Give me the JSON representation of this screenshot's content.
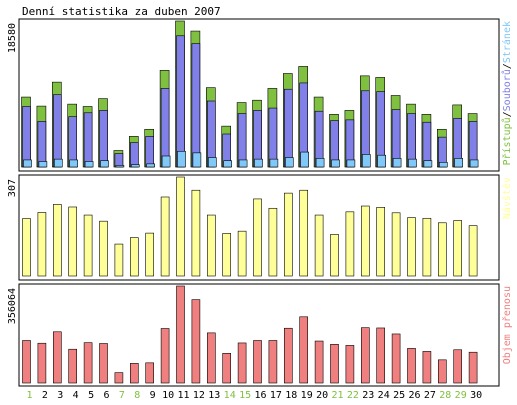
{
  "title": "Denní statistika za duben 2007",
  "colors": {
    "background": "#ffffff",
    "border": "#000000",
    "access": "#80c040",
    "file": "#8080e8",
    "page": "#80c8f8",
    "visits": "#ffff99",
    "traffic": "#f08080",
    "weekend_label": "#80c040",
    "weekday_label": "#000000"
  },
  "chart_data": [
    {
      "type": "bar",
      "panel": "hits",
      "ymax_label": "18580",
      "ylim": [
        0,
        18580
      ],
      "legend": [
        {
          "name": "Přístupů",
          "color": "#80c040"
        },
        {
          "name": "Souborů",
          "color": "#8080e8"
        },
        {
          "name": "Stránek",
          "color": "#80c8f8"
        }
      ],
      "categories": [
        "1",
        "2",
        "3",
        "4",
        "5",
        "6",
        "7",
        "8",
        "9",
        "10",
        "11",
        "12",
        "13",
        "14",
        "15",
        "16",
        "17",
        "18",
        "19",
        "20",
        "21",
        "22",
        "23",
        "24",
        "25",
        "26",
        "27",
        "28",
        "29",
        "30"
      ],
      "weekend": [
        1,
        7,
        8,
        14,
        15,
        21,
        22,
        28,
        29
      ],
      "series": [
        {
          "name": "Přístupů",
          "values": [
            8900,
            7750,
            10800,
            8000,
            7700,
            8700,
            2100,
            3900,
            4800,
            12300,
            18580,
            17300,
            10100,
            5200,
            8200,
            8500,
            10000,
            11900,
            12800,
            8900,
            6700,
            7200,
            11600,
            11400,
            9100,
            8000,
            6700,
            4800,
            7900,
            6800
          ]
        },
        {
          "name": "Souborů",
          "values": [
            7700,
            5800,
            9200,
            6400,
            6900,
            7200,
            1700,
            3100,
            3900,
            10000,
            16700,
            15700,
            8400,
            4200,
            6800,
            7200,
            7500,
            9900,
            10700,
            7100,
            5900,
            6000,
            9700,
            9600,
            7300,
            6800,
            5700,
            3800,
            6200,
            5800
          ]
        },
        {
          "name": "Stránek",
          "values": [
            900,
            700,
            1000,
            900,
            700,
            800,
            200,
            300,
            400,
            1400,
            2000,
            1800,
            1200,
            800,
            900,
            1000,
            1000,
            1200,
            1900,
            1100,
            900,
            900,
            1600,
            1500,
            1100,
            1000,
            800,
            600,
            1100,
            900
          ]
        }
      ]
    },
    {
      "type": "bar",
      "panel": "visits",
      "ymax_label": "307",
      "ylim": [
        0,
        307
      ],
      "legend": [
        {
          "name": "Návštěv",
          "color": "#ffff99"
        }
      ],
      "categories": [
        "1",
        "2",
        "3",
        "4",
        "5",
        "6",
        "7",
        "8",
        "9",
        "10",
        "11",
        "12",
        "13",
        "14",
        "15",
        "16",
        "17",
        "18",
        "19",
        "20",
        "21",
        "22",
        "23",
        "24",
        "25",
        "26",
        "27",
        "28",
        "29",
        "30"
      ],
      "series": [
        {
          "name": "Návštěv",
          "values": [
            178,
            197,
            222,
            214,
            189,
            170,
            99,
            119,
            133,
            245,
            307,
            266,
            189,
            132,
            139,
            239,
            210,
            257,
            266,
            189,
            129,
            199,
            217,
            213,
            196,
            181,
            179,
            165,
            172,
            156
          ]
        }
      ]
    },
    {
      "type": "bar",
      "panel": "traffic",
      "ymax_label": "356064",
      "ylim": [
        0,
        356064
      ],
      "legend": [
        {
          "name": "Objem přenosu",
          "color": "#f08080"
        }
      ],
      "categories": [
        "1",
        "2",
        "3",
        "4",
        "5",
        "6",
        "7",
        "8",
        "9",
        "10",
        "11",
        "12",
        "13",
        "14",
        "15",
        "16",
        "17",
        "18",
        "19",
        "20",
        "21",
        "22",
        "23",
        "24",
        "25",
        "26",
        "27",
        "28",
        "29",
        "30"
      ],
      "series": [
        {
          "name": "Objem přenosu",
          "values": [
            156000,
            146000,
            188000,
            124000,
            148000,
            145000,
            38000,
            72000,
            74000,
            200000,
            356064,
            306000,
            184000,
            109000,
            147000,
            156000,
            156000,
            201000,
            243000,
            154000,
            142000,
            138000,
            203000,
            202000,
            180000,
            127000,
            116000,
            85000,
            122000,
            113000
          ]
        }
      ]
    }
  ]
}
